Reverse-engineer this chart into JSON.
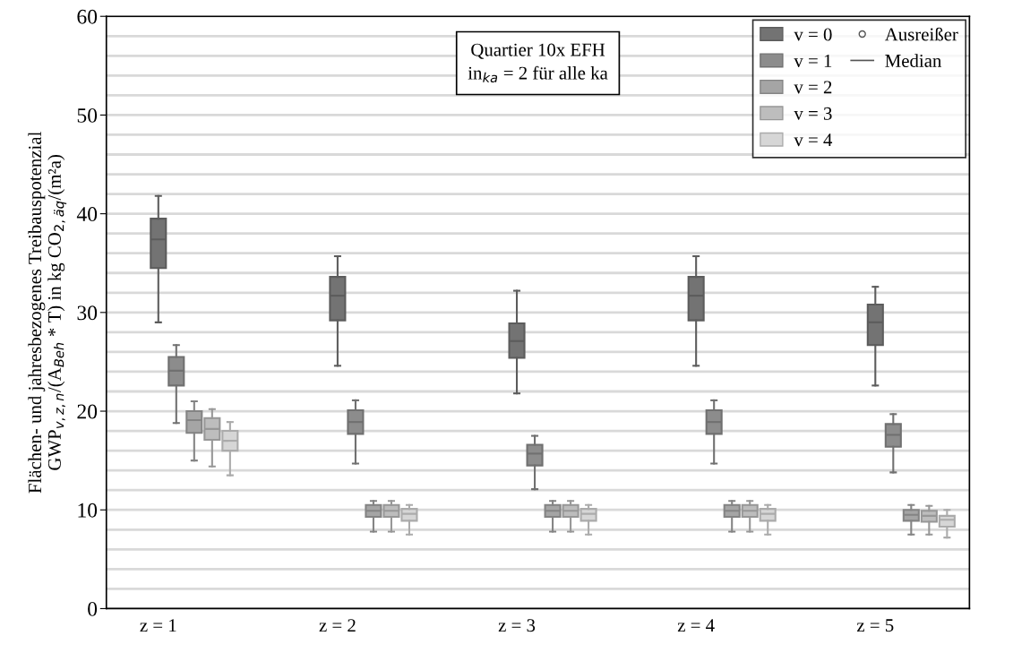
{
  "chart_data": {
    "type": "box",
    "ylabel": "Flächen- und jahresbezogenes Treibauspotenzial\nGWP$_{v,z,n}$/(A$_{Beh}$ * T) in kg CO$_{2,äq}$/(m²a)",
    "annotations": [
      "Quartier 10x EFH\nin$_{ka}$ = 2 für alle ka",
      "Ausreißer",
      "Median"
    ],
    "categories": [
      "z = 1",
      "z = 2",
      "z = 3",
      "z = 4",
      "z = 5"
    ],
    "ylim": [
      0,
      60
    ],
    "yticks": [
      0,
      {
        "value": 2,
        "label": null
      },
      {
        "value": 4,
        "label": null
      },
      {
        "value": 6,
        "label": null
      },
      {
        "value": 8,
        "label": null
      },
      10,
      {
        "value": 12,
        "label": null
      },
      {
        "value": 14,
        "label": null
      },
      {
        "value": 16,
        "label": null
      },
      {
        "value": 18,
        "label": null
      },
      20,
      {
        "value": 22,
        "label": null
      },
      {
        "value": 24,
        "label": null
      },
      {
        "value": 26,
        "label": null
      },
      {
        "value": 28,
        "label": null
      },
      30,
      {
        "value": 32,
        "label": null
      },
      {
        "value": 34,
        "label": null
      },
      {
        "value": 36,
        "label": null
      },
      {
        "value": 38,
        "label": null
      },
      40,
      {
        "value": 42,
        "label": null
      },
      {
        "value": 44,
        "label": null
      },
      {
        "value": 46,
        "label": null
      },
      {
        "value": 48,
        "label": null
      },
      50,
      {
        "value": 52,
        "label": null
      },
      {
        "value": 54,
        "label": null
      },
      {
        "value": 56,
        "label": null
      },
      {
        "value": 58,
        "label": null
      },
      60
    ],
    "grid": "y",
    "legend": "top right",
    "series": [
      {
        "name": "v = 0",
        "color": "#737373",
        "boxes": [
          {
            "low": 29.0,
            "q1": 34.5,
            "median": 37.4,
            "q3": 39.5,
            "high": 41.8
          },
          {
            "low": 24.6,
            "q1": 29.2,
            "median": 31.7,
            "q3": 33.6,
            "high": 35.7
          },
          {
            "low": 21.8,
            "q1": 25.4,
            "median": 27.1,
            "q3": 28.9,
            "high": 32.2
          },
          {
            "low": 24.6,
            "q1": 29.2,
            "median": 31.7,
            "q3": 33.6,
            "high": 35.7
          },
          {
            "low": 22.6,
            "q1": 26.7,
            "median": 29.0,
            "q3": 30.8,
            "high": 32.6
          }
        ]
      },
      {
        "name": "v = 1",
        "color": "#8c8c8c",
        "boxes": [
          {
            "low": 18.8,
            "q1": 22.6,
            "median": 24.1,
            "q3": 25.5,
            "high": 26.7
          },
          {
            "low": 14.7,
            "q1": 17.7,
            "median": 18.9,
            "q3": 20.1,
            "high": 21.1
          },
          {
            "low": 12.1,
            "q1": 14.5,
            "median": 15.7,
            "q3": 16.6,
            "high": 17.5
          },
          {
            "low": 14.7,
            "q1": 17.7,
            "median": 18.9,
            "q3": 20.1,
            "high": 21.1
          },
          {
            "low": 13.8,
            "q1": 16.4,
            "median": 17.6,
            "q3": 18.7,
            "high": 19.7
          }
        ]
      },
      {
        "name": "v = 2",
        "color": "#a5a5a5",
        "boxes": [
          {
            "low": 15.0,
            "q1": 17.8,
            "median": 19.1,
            "q3": 20.0,
            "high": 21.0
          },
          {
            "low": 7.8,
            "q1": 9.3,
            "median": 9.9,
            "q3": 10.5,
            "high": 10.9
          },
          {
            "low": 7.8,
            "q1": 9.3,
            "median": 9.9,
            "q3": 10.5,
            "high": 10.9
          },
          {
            "low": 7.8,
            "q1": 9.3,
            "median": 9.9,
            "q3": 10.5,
            "high": 10.9
          },
          {
            "low": 7.5,
            "q1": 8.9,
            "median": 9.5,
            "q3": 10.0,
            "high": 10.5
          }
        ]
      },
      {
        "name": "v = 3",
        "color": "#bdbdbd",
        "boxes": [
          {
            "low": 14.4,
            "q1": 17.1,
            "median": 18.2,
            "q3": 19.3,
            "high": 20.2
          },
          {
            "low": 7.8,
            "q1": 9.3,
            "median": 9.9,
            "q3": 10.5,
            "high": 10.9
          },
          {
            "low": 7.8,
            "q1": 9.3,
            "median": 9.9,
            "q3": 10.5,
            "high": 10.9
          },
          {
            "low": 7.8,
            "q1": 9.3,
            "median": 9.9,
            "q3": 10.5,
            "high": 10.9
          },
          {
            "low": 7.5,
            "q1": 8.8,
            "median": 9.4,
            "q3": 9.9,
            "high": 10.4
          }
        ]
      },
      {
        "name": "v = 4",
        "color": "#d6d6d6",
        "boxes": [
          {
            "low": 13.5,
            "q1": 16.0,
            "median": 17.0,
            "q3": 18.0,
            "high": 18.9
          },
          {
            "low": 7.5,
            "q1": 8.9,
            "median": 9.6,
            "q3": 10.1,
            "high": 10.5
          },
          {
            "low": 7.5,
            "q1": 8.9,
            "median": 9.6,
            "q3": 10.1,
            "high": 10.5
          },
          {
            "low": 7.5,
            "q1": 8.9,
            "median": 9.6,
            "q3": 10.1,
            "high": 10.5
          },
          {
            "low": 7.2,
            "q1": 8.3,
            "median": 9.0,
            "q3": 9.4,
            "high": 10.0
          }
        ]
      }
    ]
  }
}
